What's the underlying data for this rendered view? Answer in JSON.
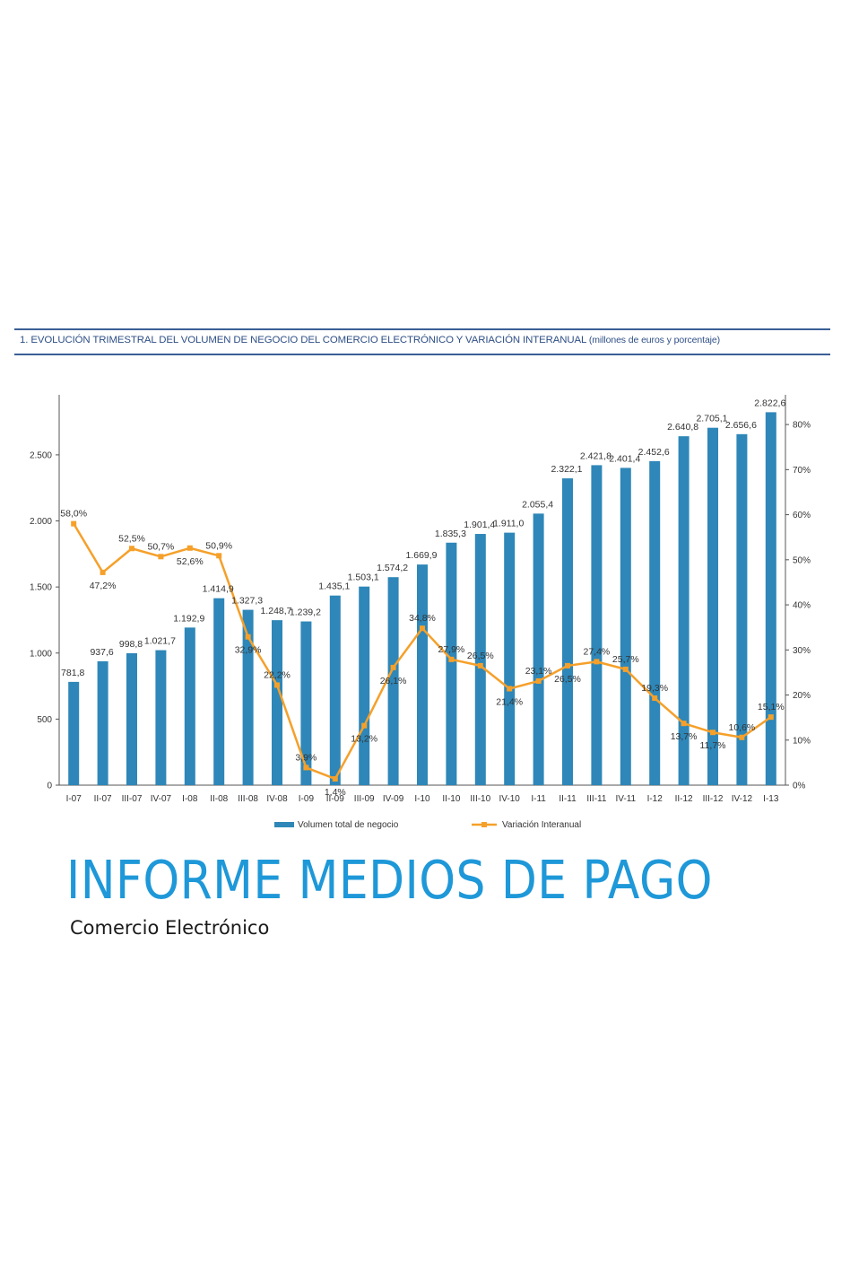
{
  "header": {
    "title": "1.  EVOLUCIÓN TRIMESTRAL DEL VOLUMEN DE NEGOCIO DEL COMERCIO ELECTRÓNICO Y VARIACIÓN INTERANUAL",
    "subtitle": "(millones de euros y porcentaje)"
  },
  "report": {
    "title": "INFORME MEDIOS DE PAGO",
    "subtitle": "Comercio Electrónico"
  },
  "chart_data": {
    "type": "bar",
    "title": "1.  EVOLUCIÓN TRIMESTRAL DEL VOLUMEN DE NEGOCIO DEL COMERCIO ELECTRÓNICO Y VARIACIÓN INTERANUAL (millones de euros y porcentaje)",
    "categories": [
      "I-07",
      "II-07",
      "III-07",
      "IV-07",
      "I-08",
      "II-08",
      "III-08",
      "IV-08",
      "I-09",
      "II-09",
      "III-09",
      "IV-09",
      "I-10",
      "II-10",
      "III-10",
      "IV-10",
      "I-11",
      "II-11",
      "III-11",
      "IV-11",
      "I-12",
      "II-12",
      "III-12",
      "IV-12",
      "I-13"
    ],
    "series": [
      {
        "name": "Volumen total de negocio",
        "type": "bar",
        "axis": "left",
        "color": "#2e87b8",
        "values": [
          781.8,
          937.6,
          998.8,
          1021.7,
          1192.9,
          1414.9,
          1327.3,
          1248.7,
          1239.2,
          1435.1,
          1503.1,
          1574.2,
          1669.9,
          1835.3,
          1901.4,
          1911.0,
          2055.4,
          2322.1,
          2421.8,
          2401.4,
          2452.6,
          2640.8,
          2705.1,
          2656.6,
          2822.6
        ],
        "labels": [
          "781,8",
          "937,6",
          "998,8",
          "1.021,7",
          "1.192,9",
          "1.414,9",
          "1.327,3",
          "1.248,7",
          "1.239,2",
          "1.435,1",
          "1.503,1",
          "1.574,2",
          "1.669,9",
          "1.835,3",
          "1.901,4",
          "1.911,0",
          "2.055,4",
          "2.322,1",
          "2.421,8",
          "2.401,4",
          "2.452,6",
          "2.640,8",
          "2.705,1",
          "2.656,6",
          "2.822,6"
        ]
      },
      {
        "name": "Variación Interanual",
        "type": "line",
        "axis": "right",
        "color": "#f5a02a",
        "values": [
          58.0,
          47.2,
          52.5,
          50.7,
          52.6,
          50.9,
          32.9,
          22.2,
          3.9,
          1.4,
          13.2,
          26.1,
          34.8,
          27.9,
          26.5,
          21.4,
          23.1,
          26.5,
          27.4,
          25.7,
          19.3,
          13.7,
          11.7,
          10.6,
          15.1
        ],
        "labels": [
          "58,0%",
          "47,2%",
          "52,5%",
          "50,7%",
          "52,6%",
          "50,9%",
          "32,9%",
          "22,2%",
          "3,9%",
          "1,4%",
          "13,2%",
          "26,1%",
          "34,8%",
          "27,9%",
          "26,5%",
          "21,4%",
          "23,1%",
          "26,5%",
          "27,4%",
          "25,7%",
          "19,3%",
          "13,7%",
          "11,7%",
          "10,6%",
          "15,1%"
        ]
      }
    ],
    "y_left": {
      "ylim": [
        0,
        2900
      ],
      "ticks": [
        0,
        500,
        1000,
        1500,
        2000,
        2500
      ],
      "tick_labels": [
        "0",
        "500",
        "1.000",
        "1.500",
        "2.000",
        "2.500"
      ]
    },
    "y_right": {
      "ylim": [
        0,
        85
      ],
      "ticks": [
        0,
        10,
        20,
        30,
        40,
        50,
        60,
        70,
        80
      ],
      "tick_labels": [
        "0%",
        "10%",
        "20%",
        "30%",
        "40%",
        "50%",
        "60%",
        "70%",
        "80%"
      ]
    },
    "grid": false,
    "legend": "bottom"
  }
}
